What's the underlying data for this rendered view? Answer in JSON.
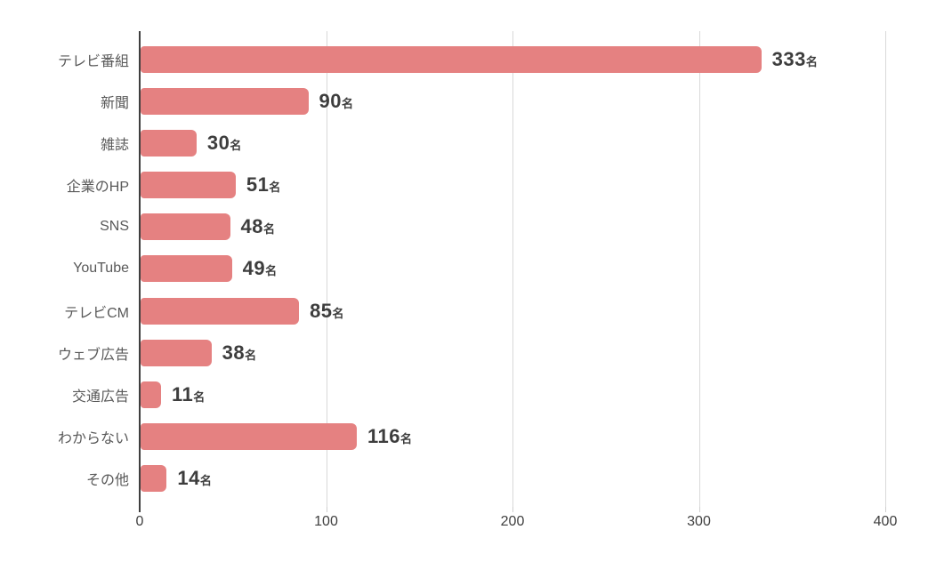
{
  "chart_data": {
    "type": "bar",
    "orientation": "horizontal",
    "title": "",
    "xlabel": "",
    "ylabel": "",
    "categories": [
      "テレビ番組",
      "新聞",
      "雑誌",
      "企業のHP",
      "SNS",
      "YouTube",
      "テレビCM",
      "ウェブ広告",
      "交通広告",
      "わからない",
      "その他"
    ],
    "values": [
      333,
      90,
      30,
      51,
      48,
      49,
      85,
      38,
      11,
      116,
      14
    ],
    "value_suffix": "名",
    "x_ticks": [
      "0",
      "100",
      "200",
      "300",
      "400"
    ],
    "x_tick_values": [
      0,
      100,
      200,
      300,
      400
    ],
    "xlim": [
      0,
      400
    ],
    "grid": true,
    "legend": "none",
    "colors": {
      "bar": "#e58181",
      "category_label": "#595959",
      "value_label": "#3d3d3d",
      "axis": "#3f3f3f",
      "gridline": "#d9d9d9",
      "background": "#ffffff"
    }
  }
}
